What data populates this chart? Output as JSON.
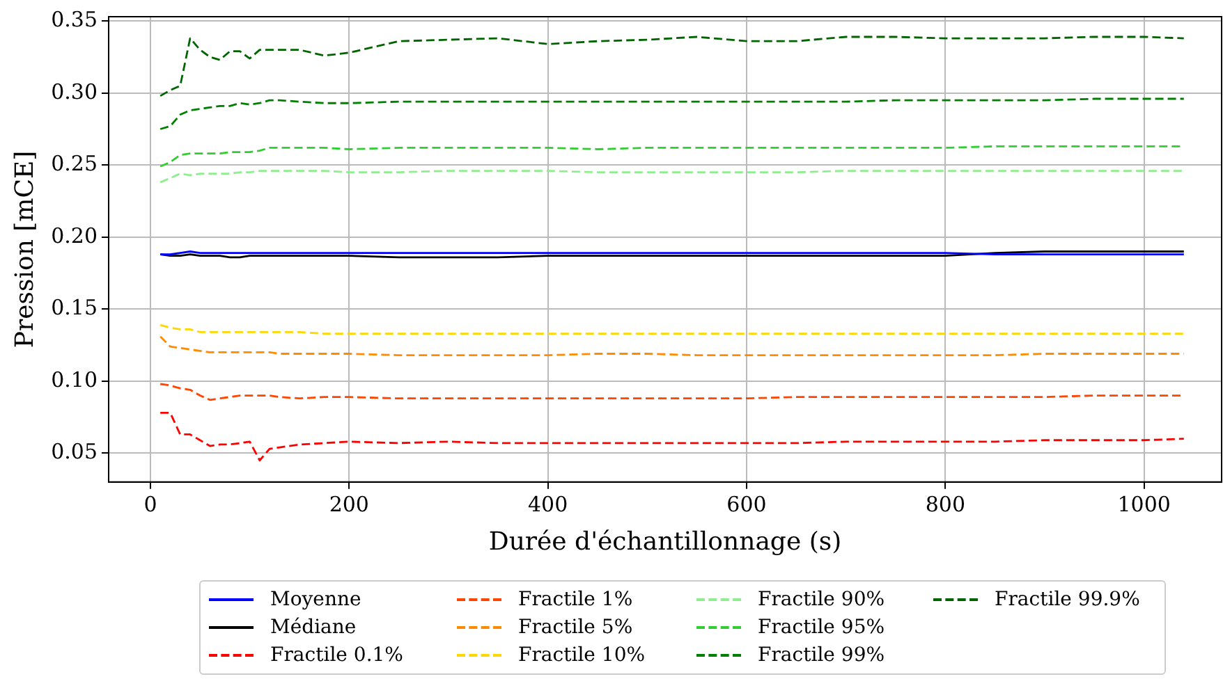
{
  "chart_data": {
    "type": "line",
    "xlabel": "Durée d'échantillonnage (s)",
    "ylabel": "Pression [mCE]",
    "x": [
      10,
      20,
      30,
      40,
      50,
      60,
      70,
      80,
      90,
      100,
      110,
      120,
      130,
      150,
      175,
      200,
      250,
      300,
      350,
      400,
      450,
      500,
      550,
      600,
      650,
      700,
      750,
      800,
      850,
      900,
      950,
      1000,
      1040
    ],
    "xlim": [
      -42,
      1078
    ],
    "xticks": [
      0,
      200,
      400,
      600,
      800,
      1000
    ],
    "ylim": [
      0.03,
      0.353
    ],
    "yticks": [
      0.05,
      {
        "value": 0.1,
        "label": "0.10"
      },
      0.15,
      {
        "value": 0.2,
        "label": "0.20"
      },
      0.25,
      {
        "value": 0.3,
        "label": "0.30"
      },
      0.35
    ],
    "grid": true,
    "legend": "bottom",
    "marker": "none",
    "series": [
      {
        "name": "Moyenne",
        "color": "#0000ff",
        "line_style": "solid",
        "values": [
          0.188,
          0.188,
          0.189,
          0.19,
          0.189,
          0.189,
          0.189,
          0.189,
          0.189,
          0.189,
          0.189,
          0.189,
          0.189,
          0.189,
          0.189,
          0.189,
          0.189,
          0.189,
          0.189,
          0.189,
          0.189,
          0.189,
          0.189,
          0.189,
          0.189,
          0.189,
          0.189,
          0.189,
          0.188,
          0.188,
          0.188,
          0.188,
          0.188
        ]
      },
      {
        "name": "Médiane",
        "color": "#000000",
        "line_style": "solid",
        "values": [
          0.188,
          0.187,
          0.187,
          0.188,
          0.187,
          0.187,
          0.187,
          0.186,
          0.186,
          0.187,
          0.187,
          0.187,
          0.187,
          0.187,
          0.187,
          0.187,
          0.186,
          0.186,
          0.186,
          0.187,
          0.187,
          0.187,
          0.187,
          0.187,
          0.187,
          0.187,
          0.187,
          0.187,
          0.189,
          0.19,
          0.19,
          0.19,
          0.19
        ]
      },
      {
        "name": "Fractile 0.1%",
        "color": "#ff0000",
        "line_style": "dashed",
        "values": [
          0.078,
          0.078,
          0.063,
          0.063,
          0.059,
          0.055,
          0.056,
          0.056,
          0.057,
          0.058,
          0.045,
          0.053,
          0.054,
          0.056,
          0.057,
          0.058,
          0.057,
          0.058,
          0.057,
          0.057,
          0.057,
          0.057,
          0.057,
          0.057,
          0.057,
          0.058,
          0.058,
          0.058,
          0.058,
          0.059,
          0.059,
          0.059,
          0.06
        ]
      },
      {
        "name": "Fractile 1%",
        "color": "#ff4500",
        "line_style": "dashed",
        "values": [
          0.098,
          0.097,
          0.095,
          0.094,
          0.09,
          0.087,
          0.088,
          0.089,
          0.09,
          0.09,
          0.09,
          0.09,
          0.089,
          0.088,
          0.089,
          0.089,
          0.088,
          0.088,
          0.088,
          0.088,
          0.088,
          0.088,
          0.088,
          0.088,
          0.089,
          0.089,
          0.089,
          0.089,
          0.089,
          0.089,
          0.09,
          0.09,
          0.09
        ]
      },
      {
        "name": "Fractile 5%",
        "color": "#ff8c00",
        "line_style": "dashed",
        "values": [
          0.131,
          0.124,
          0.123,
          0.122,
          0.121,
          0.12,
          0.12,
          0.12,
          0.12,
          0.12,
          0.12,
          0.12,
          0.119,
          0.119,
          0.119,
          0.119,
          0.118,
          0.118,
          0.118,
          0.118,
          0.119,
          0.119,
          0.118,
          0.118,
          0.118,
          0.118,
          0.118,
          0.118,
          0.118,
          0.119,
          0.119,
          0.119,
          0.119
        ]
      },
      {
        "name": "Fractile 10%",
        "color": "#ffd700",
        "line_style": "dashed",
        "values": [
          0.139,
          0.137,
          0.136,
          0.136,
          0.134,
          0.134,
          0.134,
          0.134,
          0.134,
          0.134,
          0.134,
          0.134,
          0.134,
          0.134,
          0.133,
          0.133,
          0.133,
          0.133,
          0.133,
          0.133,
          0.133,
          0.133,
          0.133,
          0.133,
          0.133,
          0.133,
          0.133,
          0.133,
          0.133,
          0.133,
          0.133,
          0.133,
          0.133
        ]
      },
      {
        "name": "Fractile 90%",
        "color": "#90ee90",
        "line_style": "dashed",
        "values": [
          0.238,
          0.241,
          0.244,
          0.243,
          0.244,
          0.244,
          0.244,
          0.244,
          0.245,
          0.245,
          0.246,
          0.246,
          0.246,
          0.246,
          0.246,
          0.245,
          0.245,
          0.246,
          0.246,
          0.246,
          0.245,
          0.245,
          0.245,
          0.245,
          0.245,
          0.246,
          0.246,
          0.246,
          0.246,
          0.246,
          0.246,
          0.246,
          0.246
        ]
      },
      {
        "name": "Fractile 95%",
        "color": "#32cd32",
        "line_style": "dashed",
        "values": [
          0.249,
          0.252,
          0.257,
          0.258,
          0.258,
          0.258,
          0.258,
          0.259,
          0.259,
          0.259,
          0.26,
          0.262,
          0.262,
          0.262,
          0.262,
          0.261,
          0.262,
          0.262,
          0.262,
          0.262,
          0.261,
          0.262,
          0.262,
          0.262,
          0.262,
          0.262,
          0.262,
          0.262,
          0.263,
          0.263,
          0.263,
          0.263,
          0.263
        ]
      },
      {
        "name": "Fractile 99%",
        "color": "#008000",
        "line_style": "dashed",
        "values": [
          0.275,
          0.277,
          0.285,
          0.288,
          0.289,
          0.29,
          0.291,
          0.291,
          0.293,
          0.292,
          0.293,
          0.295,
          0.295,
          0.294,
          0.293,
          0.293,
          0.294,
          0.294,
          0.294,
          0.294,
          0.294,
          0.294,
          0.294,
          0.294,
          0.294,
          0.294,
          0.295,
          0.295,
          0.295,
          0.295,
          0.296,
          0.296,
          0.296
        ]
      },
      {
        "name": "Fractile 99.9%",
        "color": "#006400",
        "line_style": "dashed",
        "values": [
          0.298,
          0.302,
          0.305,
          0.338,
          0.33,
          0.325,
          0.323,
          0.329,
          0.329,
          0.324,
          0.33,
          0.33,
          0.33,
          0.33,
          0.326,
          0.328,
          0.336,
          0.337,
          0.338,
          0.334,
          0.336,
          0.337,
          0.339,
          0.336,
          0.336,
          0.339,
          0.339,
          0.338,
          0.338,
          0.338,
          0.339,
          0.339,
          0.338
        ]
      }
    ]
  }
}
